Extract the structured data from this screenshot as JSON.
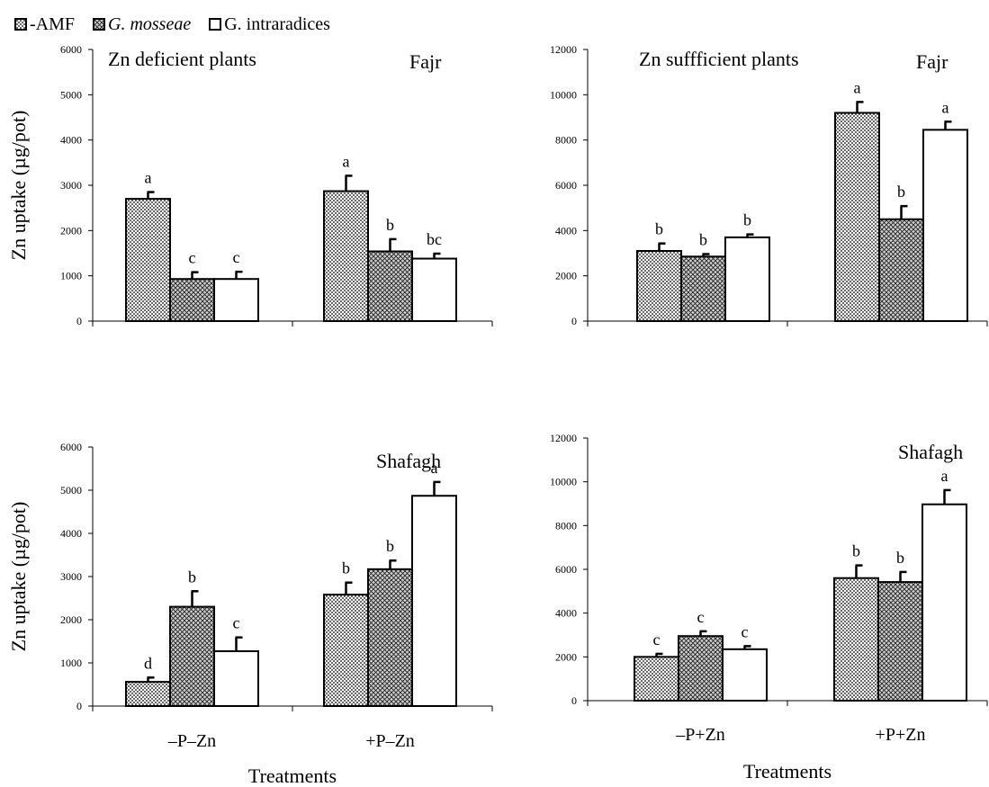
{
  "legend": [
    {
      "label": "-AMF",
      "pattern": "dots",
      "italic": false
    },
    {
      "label": "G. mosseae",
      "pattern": "crosshatch",
      "italic": true
    },
    {
      "label": "G. intraradices",
      "pattern": "none",
      "italic": false
    }
  ],
  "xlabel": "Treatments",
  "ylabel": "Zn uptake (µg/pot)",
  "chart_data": [
    {
      "type": "bar",
      "title": "Zn deficient plants",
      "cultivar": "Fajr",
      "categories": [
        "",
        ""
      ],
      "ylim": [
        0,
        6000
      ],
      "yticks": [
        0,
        1000,
        2000,
        3000,
        4000,
        5000,
        6000
      ],
      "series": [
        {
          "name": "-AMF",
          "values": [
            2700,
            2870
          ],
          "errors": [
            150,
            340
          ],
          "letters": [
            "a",
            "a"
          ]
        },
        {
          "name": "G. mosseae",
          "values": [
            930,
            1540
          ],
          "errors": [
            150,
            270
          ],
          "letters": [
            "c",
            "b"
          ]
        },
        {
          "name": "G. intraradices",
          "values": [
            930,
            1380
          ],
          "errors": [
            160,
            110
          ],
          "letters": [
            "c",
            "bc"
          ]
        }
      ]
    },
    {
      "type": "bar",
      "title": "Zn suffficient plants",
      "cultivar": "Fajr",
      "categories": [
        "",
        ""
      ],
      "ylim": [
        0,
        12000
      ],
      "yticks": [
        0,
        2000,
        4000,
        6000,
        8000,
        10000,
        12000
      ],
      "series": [
        {
          "name": "-AMF",
          "values": [
            3100,
            9200
          ],
          "errors": [
            330,
            480
          ],
          "letters": [
            "b",
            "a"
          ]
        },
        {
          "name": "G. mosseae",
          "values": [
            2850,
            4500
          ],
          "errors": [
            110,
            580
          ],
          "letters": [
            "b",
            "b"
          ]
        },
        {
          "name": "G. intraradices",
          "values": [
            3700,
            8450
          ],
          "errors": [
            130,
            360
          ],
          "letters": [
            "b",
            "a"
          ]
        }
      ]
    },
    {
      "type": "bar",
      "title": "",
      "cultivar": "Shafagh",
      "categories": [
        "–P–Zn",
        "+P–Zn"
      ],
      "ylim": [
        0,
        6000
      ],
      "yticks": [
        0,
        1000,
        2000,
        3000,
        4000,
        5000,
        6000
      ],
      "series": [
        {
          "name": "-AMF",
          "values": [
            560,
            2580
          ],
          "errors": [
            100,
            280
          ],
          "letters": [
            "d",
            "b"
          ]
        },
        {
          "name": "G. mosseae",
          "values": [
            2300,
            3170
          ],
          "errors": [
            360,
            200
          ],
          "letters": [
            "b",
            "b"
          ]
        },
        {
          "name": "G. intraradices",
          "values": [
            1270,
            4870
          ],
          "errors": [
            320,
            320
          ],
          "letters": [
            "c",
            "a"
          ]
        }
      ]
    },
    {
      "type": "bar",
      "title": "",
      "cultivar": "Shafagh",
      "categories": [
        "–P+Zn",
        "+P+Zn"
      ],
      "ylim": [
        0,
        12000
      ],
      "yticks": [
        0,
        2000,
        4000,
        6000,
        8000,
        10000,
        12000
      ],
      "series": [
        {
          "name": "-AMF",
          "values": [
            2000,
            5600
          ],
          "errors": [
            140,
            580
          ],
          "letters": [
            "c",
            "b"
          ]
        },
        {
          "name": "G. mosseae",
          "values": [
            2950,
            5420
          ],
          "errors": [
            220,
            460
          ],
          "letters": [
            "c",
            "b"
          ]
        },
        {
          "name": "G. intraradices",
          "values": [
            2350,
            8970
          ],
          "errors": [
            140,
            650
          ],
          "letters": [
            "c",
            "a"
          ]
        }
      ]
    }
  ]
}
